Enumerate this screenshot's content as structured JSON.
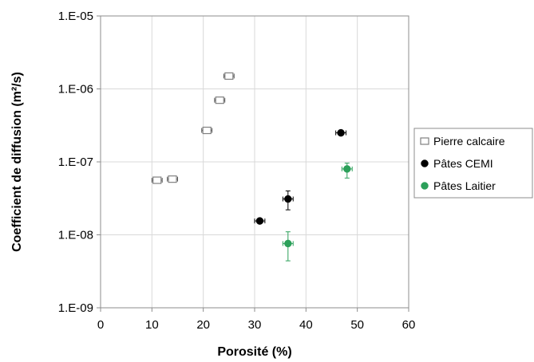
{
  "chart_data": {
    "type": "scatter",
    "title": "",
    "xlabel": "Porosité (%)",
    "ylabel": "Coefficient de diffusion (m²/s)",
    "xlim": [
      0,
      60
    ],
    "ylim": [
      1e-09,
      1e-05
    ],
    "yscale": "log",
    "grid": true,
    "legend_position": "right",
    "x_ticks": [
      "0",
      "10",
      "20",
      "30",
      "40",
      "50",
      "60"
    ],
    "x_tick_values": [
      0,
      10,
      20,
      30,
      40,
      50,
      60
    ],
    "y_ticks": [
      "1.E-09",
      "1.E-08",
      "1.E-07",
      "1.E-06",
      "1.E-05"
    ],
    "y_tick_values": [
      1e-09,
      1e-08,
      1e-07,
      1e-06,
      1e-05
    ],
    "series": [
      {
        "name": "Pierre calcaire",
        "marker": "square-open",
        "color": "#808080",
        "points": [
          {
            "x": 11,
            "y": 5.6e-08,
            "xerr": 1.0
          },
          {
            "x": 14,
            "y": 5.8e-08,
            "xerr": 1.0
          },
          {
            "x": 20.7,
            "y": 2.7e-07,
            "xerr": 1.0
          },
          {
            "x": 23.2,
            "y": 7e-07,
            "xerr": 1.0
          },
          {
            "x": 25,
            "y": 1.5e-06,
            "xerr": 1.0
          }
        ]
      },
      {
        "name": "Pâtes CEMI",
        "marker": "circle",
        "color": "#000000",
        "points": [
          {
            "x": 31,
            "y": 1.55e-08,
            "xerr": 1.0
          },
          {
            "x": 36.5,
            "y": 3.1e-08,
            "xerr": 1.0,
            "yerr": [
              2.2e-08,
              4e-08
            ]
          },
          {
            "x": 46.8,
            "y": 2.5e-07,
            "xerr": 1.0
          }
        ]
      },
      {
        "name": "Pâtes Laitier",
        "marker": "circle",
        "color": "#2ca05a",
        "points": [
          {
            "x": 36.5,
            "y": 7.6e-09,
            "xerr": 1.0,
            "yerr": [
              4.4e-09,
              1.1e-08
            ]
          },
          {
            "x": 48,
            "y": 8e-08,
            "xerr": 1.0,
            "yerr": [
              6e-08,
              9.6e-08
            ]
          }
        ]
      }
    ]
  }
}
